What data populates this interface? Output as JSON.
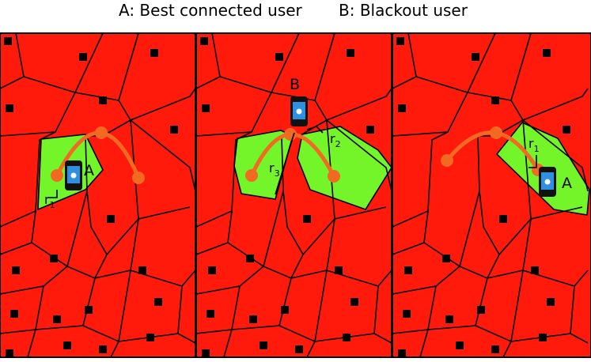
{
  "header": {
    "legend_a": "A: Best connected user",
    "legend_b": "B: Blackout user"
  },
  "panels": [
    {
      "user": "A",
      "radii": [
        {
          "r": "r",
          "sub": "1"
        }
      ]
    },
    {
      "user": "B",
      "radii": [
        {
          "r": "r",
          "sub": "2"
        },
        {
          "r": "r",
          "sub": "3"
        }
      ]
    },
    {
      "user": "A",
      "radii": [
        {
          "r": "r",
          "sub": "1"
        }
      ]
    }
  ]
}
